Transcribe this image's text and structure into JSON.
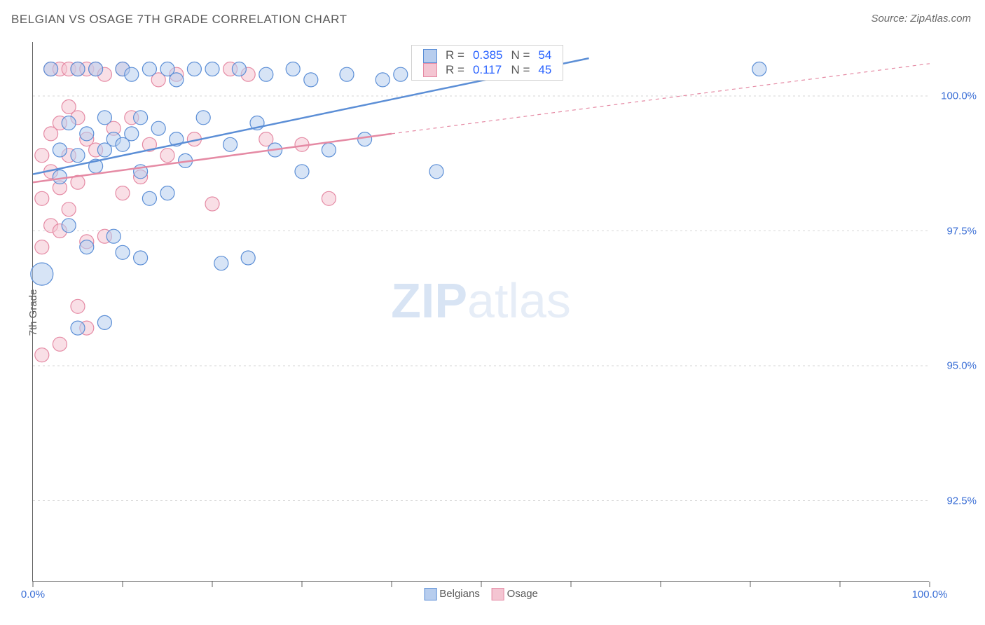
{
  "title": "BELGIAN VS OSAGE 7TH GRADE CORRELATION CHART",
  "source": "Source: ZipAtlas.com",
  "ylabel": "7th Grade",
  "watermark_a": "ZIP",
  "watermark_b": "atlas",
  "chart": {
    "type": "scatter",
    "background_color": "#ffffff",
    "grid_color": "#d6d6d6",
    "axis_color": "#606060",
    "label_color": "#3b6fd6",
    "text_color": "#5a5a5a",
    "font_family": "Arial",
    "title_fontsize": 17,
    "label_fontsize": 15,
    "tick_fontsize": 15,
    "marker_radius": 10,
    "marker_radius_large": 16,
    "marker_opacity": 0.55,
    "line_width": 2.5,
    "xlim": [
      0,
      100
    ],
    "ylim": [
      91.0,
      101.0
    ],
    "x_ticks": [
      0,
      10,
      20,
      30,
      40,
      50,
      60,
      70,
      80,
      90,
      100
    ],
    "x_tick_labels": {
      "0": "0.0%",
      "100": "100.0%"
    },
    "y_grid": [
      92.5,
      95.0,
      97.5,
      100.0
    ],
    "y_tick_labels": {
      "92.5": "92.5%",
      "95.0": "95.0%",
      "97.5": "97.5%",
      "100.0": "100.0%"
    },
    "series": [
      {
        "name": "Belgians",
        "color_fill": "#b7cdee",
        "color_stroke": "#5b8ed6",
        "R": "0.385",
        "N": "54",
        "trend": {
          "x1": 0,
          "y1": 98.55,
          "x2": 62,
          "y2": 100.7,
          "dashed_after": false,
          "full_x2": 62
        },
        "points": [
          [
            1,
            96.7,
            16
          ],
          [
            2,
            100.5
          ],
          [
            3,
            99.0
          ],
          [
            3,
            98.5
          ],
          [
            4,
            99.5
          ],
          [
            4,
            97.6
          ],
          [
            5,
            100.5
          ],
          [
            5,
            98.9
          ],
          [
            6,
            99.3
          ],
          [
            6,
            97.2
          ],
          [
            7,
            100.5
          ],
          [
            7,
            98.7
          ],
          [
            8,
            99.6
          ],
          [
            8,
            99.0
          ],
          [
            8,
            95.8
          ],
          [
            9,
            99.2
          ],
          [
            9,
            97.4
          ],
          [
            10,
            100.5
          ],
          [
            10,
            99.1
          ],
          [
            10,
            97.1
          ],
          [
            11,
            100.4
          ],
          [
            11,
            99.3
          ],
          [
            12,
            99.6
          ],
          [
            12,
            98.6
          ],
          [
            12,
            97.0
          ],
          [
            13,
            100.5
          ],
          [
            13,
            98.1
          ],
          [
            14,
            99.4
          ],
          [
            15,
            100.5
          ],
          [
            15,
            98.2
          ],
          [
            16,
            100.3
          ],
          [
            16,
            99.2
          ],
          [
            17,
            98.8
          ],
          [
            18,
            100.5
          ],
          [
            19,
            99.6
          ],
          [
            20,
            100.5
          ],
          [
            21,
            96.9
          ],
          [
            22,
            99.1
          ],
          [
            23,
            100.5
          ],
          [
            24,
            97.0
          ],
          [
            25,
            99.5
          ],
          [
            26,
            100.4
          ],
          [
            27,
            99.0
          ],
          [
            29,
            100.5
          ],
          [
            30,
            98.6
          ],
          [
            31,
            100.3
          ],
          [
            33,
            99.0
          ],
          [
            35,
            100.4
          ],
          [
            37,
            99.2
          ],
          [
            39,
            100.3
          ],
          [
            41,
            100.4
          ],
          [
            45,
            98.6
          ],
          [
            81,
            100.5
          ],
          [
            5,
            95.7
          ]
        ]
      },
      {
        "name": "Osage",
        "color_fill": "#f4c5d2",
        "color_stroke": "#e58aa4",
        "R": "0.117",
        "N": "45",
        "trend": {
          "x1": 0,
          "y1": 98.4,
          "x2": 40,
          "y2": 99.3,
          "dashed_after": true,
          "full_x2": 100,
          "full_y2": 100.6
        },
        "points": [
          [
            1,
            97.2
          ],
          [
            1,
            98.1
          ],
          [
            1,
            98.9
          ],
          [
            1,
            95.2
          ],
          [
            2,
            99.3
          ],
          [
            2,
            100.5
          ],
          [
            2,
            97.6
          ],
          [
            2,
            98.6
          ],
          [
            3,
            100.5
          ],
          [
            3,
            99.5
          ],
          [
            3,
            98.3
          ],
          [
            3,
            97.5
          ],
          [
            3,
            95.4
          ],
          [
            4,
            100.5
          ],
          [
            4,
            99.8
          ],
          [
            4,
            98.9
          ],
          [
            4,
            97.9
          ],
          [
            5,
            100.5
          ],
          [
            5,
            99.6
          ],
          [
            5,
            98.4
          ],
          [
            5,
            96.1
          ],
          [
            6,
            100.5
          ],
          [
            6,
            99.2
          ],
          [
            6,
            97.3
          ],
          [
            6,
            95.7
          ],
          [
            7,
            100.5
          ],
          [
            7,
            99.0
          ],
          [
            8,
            100.4
          ],
          [
            8,
            97.4
          ],
          [
            9,
            99.4
          ],
          [
            10,
            100.5
          ],
          [
            10,
            98.2
          ],
          [
            11,
            99.6
          ],
          [
            12,
            98.5
          ],
          [
            13,
            99.1
          ],
          [
            14,
            100.3
          ],
          [
            15,
            98.9
          ],
          [
            16,
            100.4
          ],
          [
            18,
            99.2
          ],
          [
            20,
            98.0
          ],
          [
            22,
            100.5
          ],
          [
            24,
            100.4
          ],
          [
            26,
            99.2
          ],
          [
            30,
            99.1
          ],
          [
            33,
            98.1
          ]
        ]
      }
    ],
    "upper_legend": {
      "col_labels": [
        "R =",
        "N ="
      ],
      "value_color": "#2962ff"
    },
    "bottom_legend_labels": [
      "Belgians",
      "Osage"
    ]
  }
}
